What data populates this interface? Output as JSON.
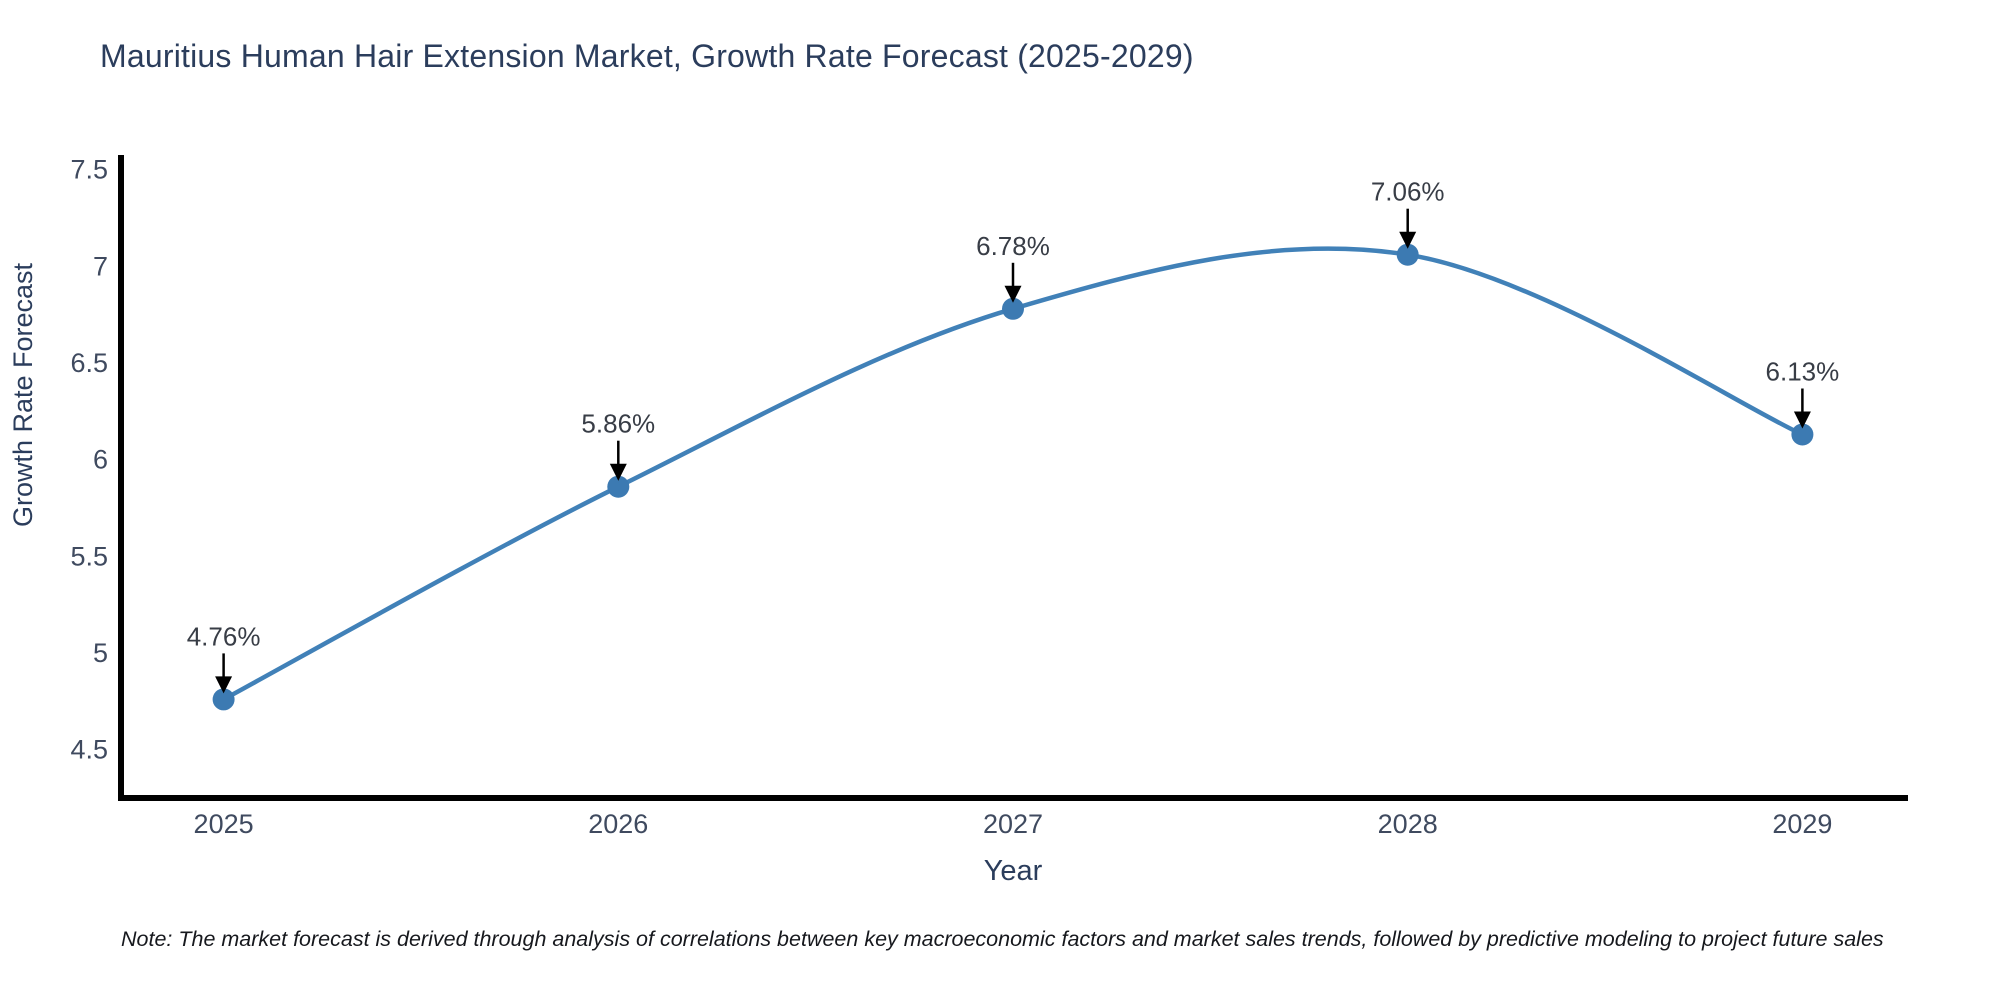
{
  "note": "Note: The market forecast is derived through analysis of correlations between key macroeconomic factors and market sales trends, followed by predictive modeling to project future sales",
  "colors": {
    "background": "#ffffff",
    "line": "#4181b8",
    "marker": "#3c7ab2",
    "annotation_arrow": "#000000",
    "annotation_text": "#383d46",
    "axis_spine": "#000000",
    "tick_label": "#3f4a5f",
    "axis_title": "#2b3d5c",
    "title": "#2b3d5c"
  },
  "chart_data": {
    "type": "line",
    "title": "Mauritius Human Hair Extension Market, Growth Rate Forecast (2025-2029)",
    "xlabel": "Year",
    "ylabel": "Growth Rate Forecast",
    "x": [
      2025,
      2026,
      2027,
      2028,
      2029
    ],
    "series": [
      {
        "name": "Growth Rate Forecast",
        "values": [
          4.76,
          5.86,
          6.78,
          7.06,
          6.13
        ]
      }
    ],
    "point_labels": [
      "4.76%",
      "5.86%",
      "6.78%",
      "7.06%",
      "6.13%"
    ],
    "xtick_labels": [
      "2025",
      "2026",
      "2027",
      "2028",
      "2029"
    ],
    "ytick_values": [
      4.5,
      5,
      5.5,
      6,
      6.5,
      7,
      7.5
    ],
    "ytick_labels": [
      "4.5",
      "5",
      "5.5",
      "6",
      "6.5",
      "7",
      "7.5"
    ],
    "xlim": [
      2024.74,
      2029.26
    ],
    "ylim": [
      4.25,
      7.56
    ],
    "grid": false,
    "legend": "none",
    "curve": "spline",
    "annotations": "value label with downward black arrow above each data point"
  }
}
